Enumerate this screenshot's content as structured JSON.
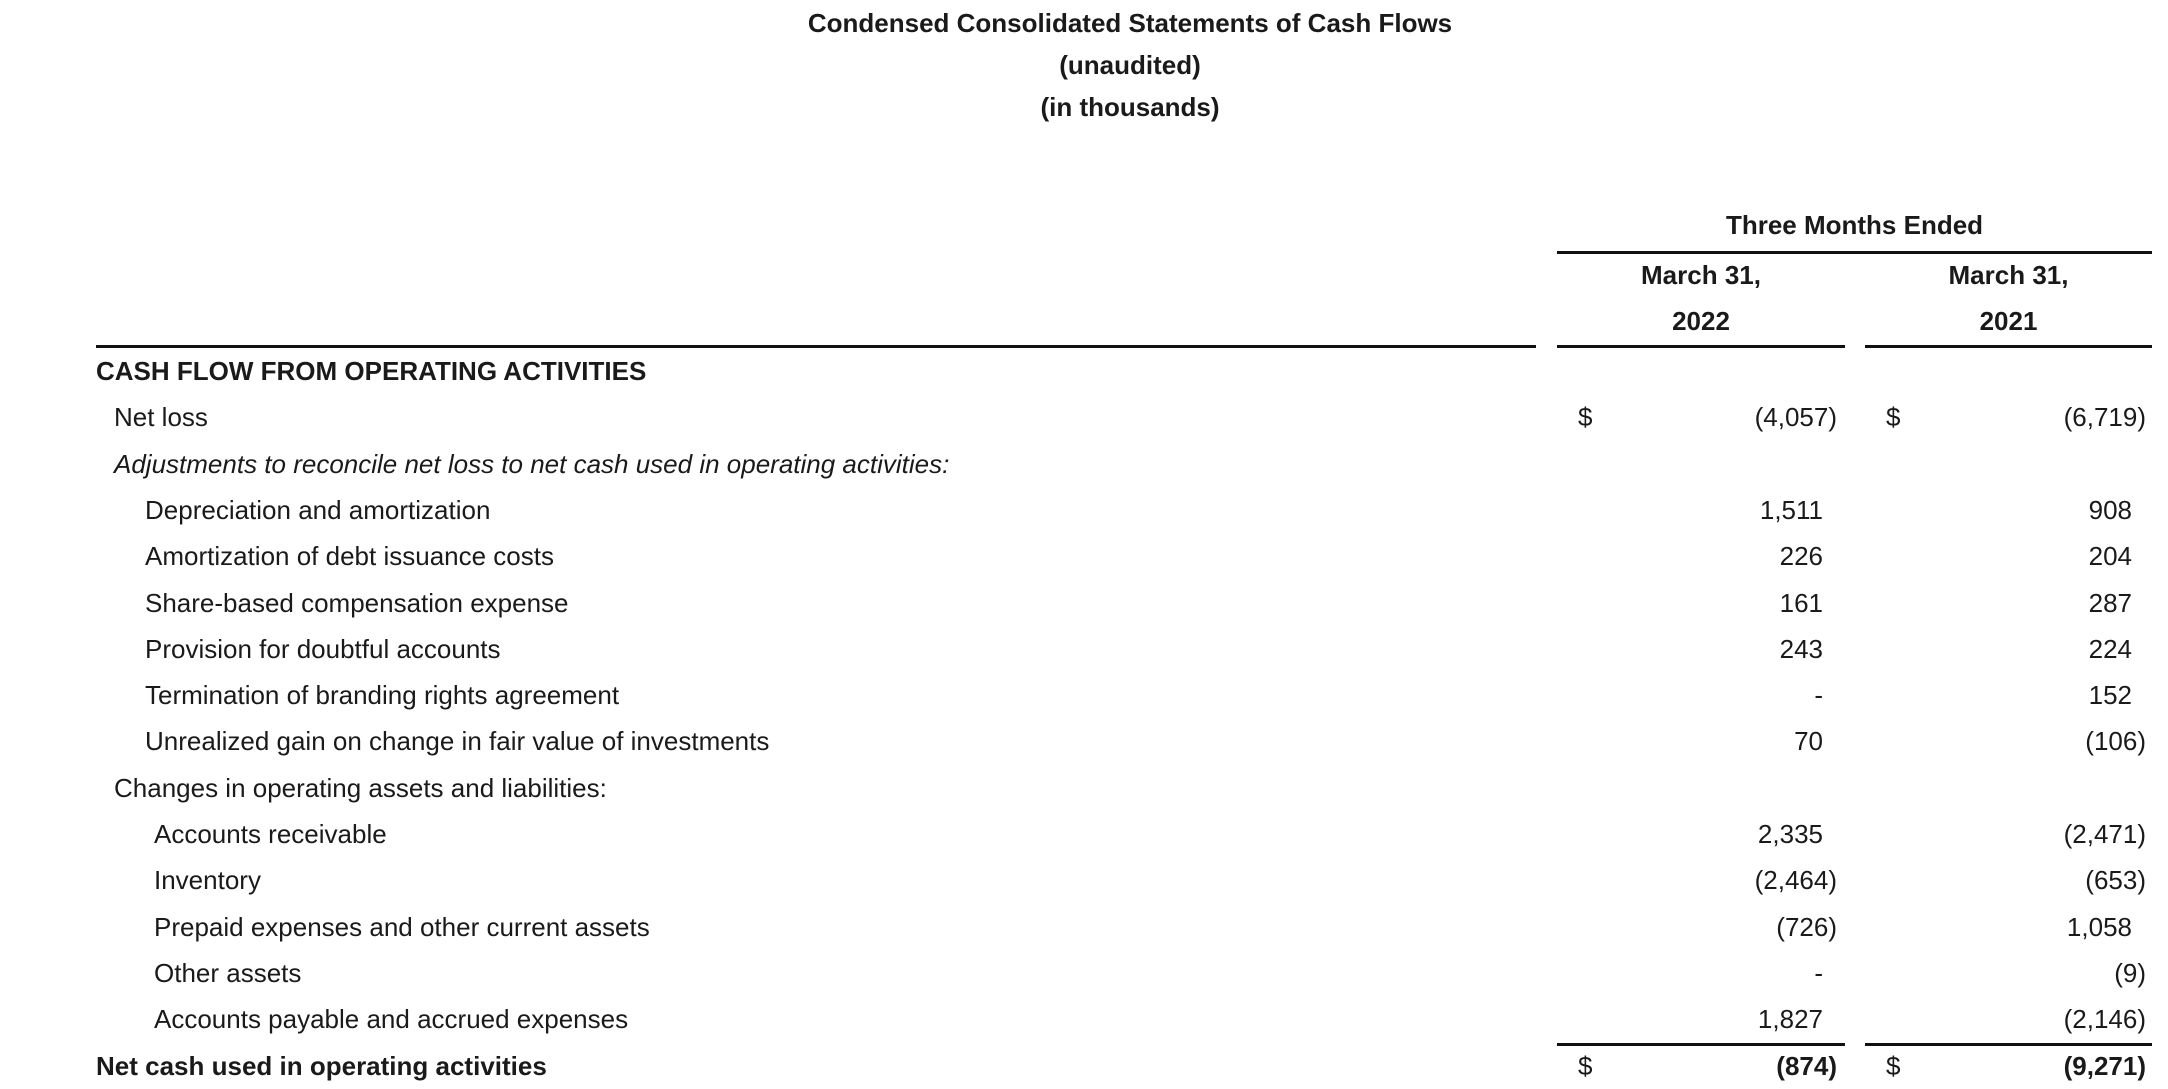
{
  "title": [
    "Condensed Consolidated Statements of Cash Flows",
    "(unaudited)",
    "(in thousands)"
  ],
  "period_header": "Three Months Ended",
  "columns": [
    {
      "line1": "March 31,",
      "line2": "2022"
    },
    {
      "line1": "March 31,",
      "line2": "2021"
    }
  ],
  "rows": [
    {
      "label": "CASH FLOW FROM OPERATING ACTIVITIES",
      "style": "bold",
      "indent": 0
    },
    {
      "label": "Net loss",
      "indent": 1,
      "currency": "$",
      "v2022": "(4,057)",
      "v2021": "(6,719)"
    },
    {
      "label": "Adjustments to reconcile net loss to net cash used in operating activities:",
      "style": "italic",
      "indent": 1
    },
    {
      "label": "Depreciation and amortization",
      "indent": 2,
      "v2022": "1,511",
      "v2021": "908"
    },
    {
      "label": "Amortization of debt issuance costs",
      "indent": 2,
      "v2022": "226",
      "v2021": "204"
    },
    {
      "label": "Share-based compensation expense",
      "indent": 2,
      "v2022": "161",
      "v2021": "287"
    },
    {
      "label": "Provision for doubtful accounts",
      "indent": 2,
      "v2022": "243",
      "v2021": "224"
    },
    {
      "label": "Termination of branding rights agreement",
      "indent": 2,
      "v2022": "-",
      "v2021": "152"
    },
    {
      "label": "Unrealized gain on change in fair value of investments",
      "indent": 2,
      "v2022": "70",
      "v2021": "(106)"
    },
    {
      "label": "Changes in operating assets and liabilities:",
      "indent": 1
    },
    {
      "label": "Accounts receivable",
      "indent": 3,
      "v2022": "2,335",
      "v2021": "(2,471)"
    },
    {
      "label": "Inventory",
      "indent": 3,
      "v2022": "(2,464)",
      "v2021": "(653)"
    },
    {
      "label": "Prepaid expenses and other current assets",
      "indent": 3,
      "v2022": "(726)",
      "v2021": "1,058"
    },
    {
      "label": "Other assets",
      "indent": 3,
      "v2022": "-",
      "v2021": "(9)"
    },
    {
      "label": "Accounts payable and accrued expenses",
      "indent": 3,
      "v2022": "1,827",
      "v2021": "(2,146)"
    },
    {
      "label": "Net cash used in operating activities",
      "style": "bold",
      "indent": 0,
      "currency": "$",
      "v2022": "(874)",
      "v2021": "(9,271)",
      "total": true
    }
  ]
}
